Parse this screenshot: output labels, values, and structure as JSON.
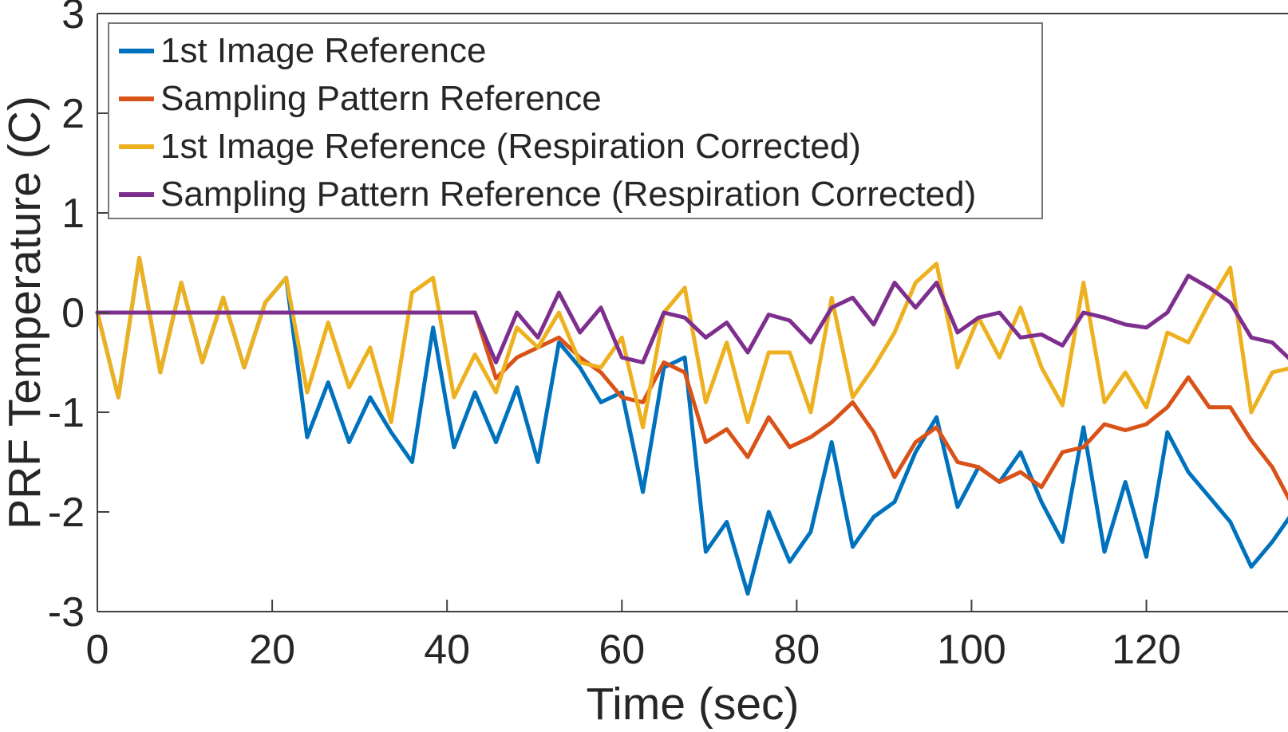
{
  "figure": {
    "background": "#ffffff",
    "text_color": "#262626",
    "axis_color": "#404040"
  },
  "chart_data": {
    "type": "line",
    "title": "",
    "xlabel": "Time (sec)",
    "ylabel": "PRF Temperature (C)",
    "xlim": [
      0,
      136.2
    ],
    "ylim": [
      -3,
      3
    ],
    "xticks": [
      0,
      20,
      40,
      60,
      80,
      100,
      120
    ],
    "yticks": [
      -3,
      -2,
      -1,
      0,
      1,
      2,
      3
    ],
    "grid": false,
    "legend_position": "northwest",
    "x": [
      0,
      2.4,
      4.8,
      7.2,
      9.6,
      12,
      14.4,
      16.8,
      19.2,
      21.6,
      24,
      26.4,
      28.8,
      31.2,
      33.6,
      36,
      38.4,
      40.8,
      43.2,
      45.6,
      48,
      50.4,
      52.8,
      55.2,
      57.6,
      60,
      62.4,
      64.8,
      67.2,
      69.6,
      72,
      74.4,
      76.8,
      79.2,
      81.6,
      84,
      86.4,
      88.8,
      91.2,
      93.6,
      96,
      98.4,
      100.8,
      103.2,
      105.6,
      108,
      110.4,
      112.8,
      115.2,
      117.6,
      120,
      122.4,
      124.8,
      127.2,
      129.6,
      132,
      134.4,
      136.8
    ],
    "series": [
      {
        "name": "1st Image Reference",
        "color": "#0072BD",
        "values": [
          0,
          -0.85,
          0.55,
          -0.6,
          0.3,
          -0.5,
          0.15,
          -0.55,
          0.1,
          0.35,
          -1.25,
          -0.7,
          -1.3,
          -0.85,
          -1.2,
          -1.5,
          -0.15,
          -1.35,
          -0.8,
          -1.3,
          -0.75,
          -1.5,
          -0.3,
          -0.55,
          -0.9,
          -0.8,
          -1.8,
          -0.55,
          -0.45,
          -2.4,
          -2.1,
          -2.82,
          -2.0,
          -2.5,
          -2.2,
          -1.3,
          -2.35,
          -2.05,
          -1.9,
          -1.4,
          -1.05,
          -1.95,
          -1.55,
          -1.7,
          -1.4,
          -1.9,
          -2.3,
          -1.15,
          -2.4,
          -1.7,
          -2.45,
          -1.2,
          -1.6,
          -1.85,
          -2.1,
          -2.55,
          -2.3,
          -2.0
        ]
      },
      {
        "name": "Sampling Pattern Reference",
        "color": "#D95319",
        "values": [
          0,
          0,
          0,
          0,
          0,
          0,
          0,
          0,
          0,
          0,
          0,
          0,
          0,
          0,
          0,
          0,
          0,
          0,
          0,
          -0.66,
          -0.45,
          -0.35,
          -0.25,
          -0.45,
          -0.6,
          -0.85,
          -0.9,
          -0.5,
          -0.6,
          -1.3,
          -1.17,
          -1.45,
          -1.05,
          -1.35,
          -1.25,
          -1.1,
          -0.9,
          -1.2,
          -1.65,
          -1.3,
          -1.15,
          -1.5,
          -1.55,
          -1.7,
          -1.6,
          -1.75,
          -1.4,
          -1.35,
          -1.12,
          -1.18,
          -1.12,
          -0.95,
          -0.65,
          -0.95,
          -0.95,
          -1.28,
          -1.55,
          -1.95
        ]
      },
      {
        "name": "1st Image Reference (Respiration Corrected)",
        "color": "#EDB120",
        "values": [
          0,
          -0.85,
          0.55,
          -0.6,
          0.3,
          -0.5,
          0.15,
          -0.55,
          0.1,
          0.35,
          -0.8,
          -0.1,
          -0.75,
          -0.35,
          -1.1,
          0.2,
          0.35,
          -0.85,
          -0.42,
          -0.8,
          -0.15,
          -0.35,
          0.0,
          -0.5,
          -0.55,
          -0.25,
          -1.15,
          0.0,
          0.25,
          -0.9,
          -0.3,
          -1.1,
          -0.4,
          -0.4,
          -1.0,
          0.15,
          -0.85,
          -0.55,
          -0.2,
          0.3,
          0.49,
          -0.55,
          -0.05,
          -0.45,
          0.05,
          -0.55,
          -0.93,
          0.3,
          -0.9,
          -0.6,
          -0.95,
          -0.2,
          -0.3,
          0.1,
          0.45,
          -1.0,
          -0.6,
          -0.55
        ]
      },
      {
        "name": "Sampling Pattern Reference (Respiration Corrected)",
        "color": "#7E2F8E",
        "values": [
          0,
          0,
          0,
          0,
          0,
          0,
          0,
          0,
          0,
          0,
          0,
          0,
          0,
          0,
          0,
          0,
          0,
          0,
          0,
          -0.5,
          0.0,
          -0.25,
          0.2,
          -0.2,
          0.05,
          -0.45,
          -0.5,
          0.0,
          -0.05,
          -0.25,
          -0.1,
          -0.4,
          -0.02,
          -0.08,
          -0.3,
          0.05,
          0.15,
          -0.12,
          0.3,
          0.05,
          0.3,
          -0.2,
          -0.05,
          0.0,
          -0.25,
          -0.22,
          -0.33,
          0.0,
          -0.05,
          -0.12,
          -0.15,
          0.0,
          0.37,
          0.25,
          0.1,
          -0.25,
          -0.3,
          -0.5
        ]
      }
    ]
  }
}
